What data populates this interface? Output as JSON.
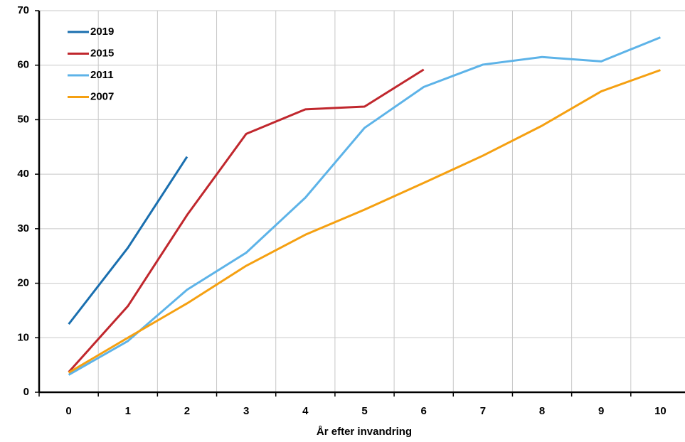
{
  "chart_data": {
    "type": "line",
    "x_label": "År efter invandring",
    "categories": [
      "0",
      "1",
      "2",
      "3",
      "4",
      "5",
      "6",
      "7",
      "8",
      "9",
      "10"
    ],
    "series": [
      {
        "name": "2019",
        "color": "#1a6faf",
        "values": [
          12.5,
          26.5,
          43.2,
          null,
          null,
          null,
          null,
          null,
          null,
          null,
          null
        ]
      },
      {
        "name": "2015",
        "color": "#c0272d",
        "values": [
          3.7,
          15.8,
          32.5,
          47.4,
          51.9,
          52.4,
          59.2,
          null,
          null,
          null,
          null
        ]
      },
      {
        "name": "2011",
        "color": "#5db3e8",
        "values": [
          3.2,
          9.4,
          18.8,
          25.6,
          35.7,
          48.5,
          56.0,
          60.1,
          61.5,
          60.7,
          65.1
        ]
      },
      {
        "name": "2007",
        "color": "#f5a011",
        "values": [
          3.6,
          10.0,
          16.3,
          23.2,
          28.9,
          33.5,
          38.4,
          43.4,
          48.9,
          55.2,
          59.1
        ]
      }
    ],
    "ylim": [
      0,
      70
    ],
    "yticks": [
      0,
      10,
      20,
      30,
      40,
      50,
      60,
      70
    ],
    "grid": true,
    "legend": "upper left"
  }
}
